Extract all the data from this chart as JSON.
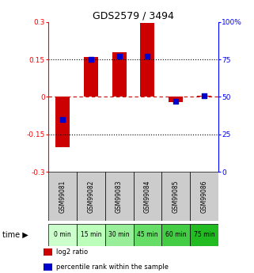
{
  "title": "GDS2579 / 3494",
  "samples": [
    "GSM99081",
    "GSM99082",
    "GSM99083",
    "GSM99084",
    "GSM99085",
    "GSM99086"
  ],
  "time_labels": [
    "0 min",
    "15 min",
    "30 min",
    "45 min",
    "60 min",
    "75 min"
  ],
  "log2_ratio": [
    -0.2,
    0.16,
    0.18,
    0.295,
    -0.02,
    0.005
  ],
  "percentile_rank": [
    35,
    75,
    77,
    77,
    47,
    51
  ],
  "bar_color": "#cc0000",
  "dot_color": "#0000cc",
  "ylim_left": [
    -0.3,
    0.3
  ],
  "ylim_right": [
    0,
    100
  ],
  "yticks_left": [
    -0.3,
    -0.15,
    0,
    0.15,
    0.3
  ],
  "ytick_labels_left": [
    "-0.3",
    "-0.15",
    "0",
    "0.15",
    "0.3"
  ],
  "yticks_right": [
    0,
    25,
    50,
    75,
    100
  ],
  "ytick_labels_right": [
    "0",
    "25",
    "50",
    "75",
    "100%"
  ],
  "bar_width": 0.5,
  "dot_size": 25,
  "time_colors": [
    "#ccffcc",
    "#bbffbb",
    "#99ee99",
    "#66dd66",
    "#44cc44",
    "#22bb22"
  ],
  "sample_bg": "#cccccc",
  "legend_items": [
    {
      "color": "#cc0000",
      "label": "log2 ratio"
    },
    {
      "color": "#0000cc",
      "label": "percentile rank within the sample"
    }
  ]
}
